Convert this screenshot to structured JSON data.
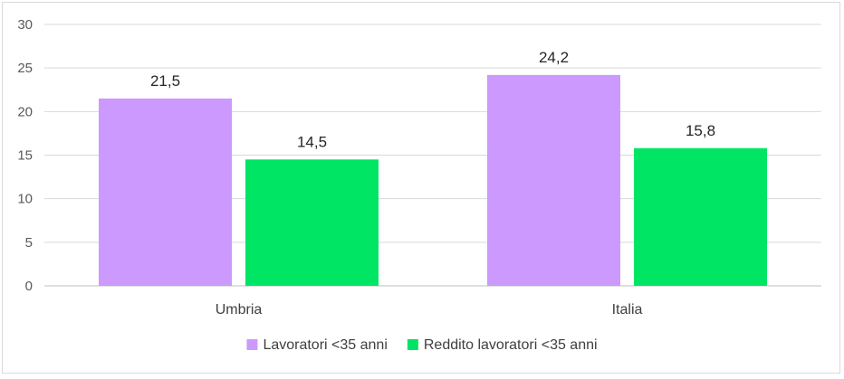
{
  "chart_data": {
    "type": "bar",
    "categories": [
      "Umbria",
      "Italia"
    ],
    "series": [
      {
        "name": "Lavoratori <35 anni",
        "values": [
          21.5,
          24.2
        ],
        "labels": [
          "21,5",
          "24,2"
        ],
        "color": "#cc99ff"
      },
      {
        "name": "Reddito lavoratori <35 anni",
        "values": [
          14.5,
          15.8
        ],
        "labels": [
          "14,5",
          "15,8"
        ],
        "color": "#00e664"
      }
    ],
    "ylim": [
      0,
      30
    ],
    "yticks": [
      0,
      5,
      10,
      15,
      20,
      25,
      30
    ],
    "grid": true,
    "legend": "bottom"
  }
}
